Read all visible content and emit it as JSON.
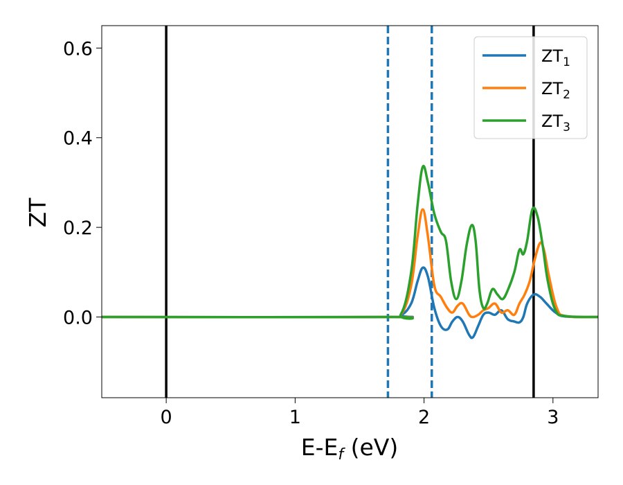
{
  "chart_data": {
    "type": "line",
    "xlabel": "E-E",
    "xlabel_sub": "f",
    "xlabel_unit": " (eV)",
    "ylabel": "ZT",
    "xlim": [
      -0.5,
      3.35
    ],
    "ylim": [
      -0.18,
      0.65
    ],
    "xticks": [
      0,
      1,
      2,
      3
    ],
    "yticks": [
      0.0,
      0.2,
      0.4,
      0.6
    ],
    "xtick_labels": [
      "0",
      "1",
      "2",
      "3"
    ],
    "ytick_labels": [
      "0.0",
      "0.2",
      "0.4",
      "0.6"
    ],
    "grid": false,
    "legend_position": "top-right",
    "vertical_lines": [
      {
        "x": 0.0,
        "style": "solid",
        "color": "#000000"
      },
      {
        "x": 2.85,
        "style": "solid",
        "color": "#000000"
      },
      {
        "x": 1.72,
        "style": "dashed",
        "color": "#1f77b4"
      },
      {
        "x": 2.06,
        "style": "dashed",
        "color": "#1f77b4"
      }
    ],
    "series": [
      {
        "name": "ZT",
        "sub": "1",
        "color": "#1f77b4",
        "x": [
          -0.5,
          1.7,
          1.82,
          1.9,
          1.95,
          1.99,
          2.03,
          2.08,
          2.13,
          2.18,
          2.22,
          2.26,
          2.3,
          2.35,
          2.38,
          2.42,
          2.46,
          2.5,
          2.55,
          2.6,
          2.65,
          2.7,
          2.74,
          2.77,
          2.8,
          2.85,
          2.9,
          2.95,
          3.02,
          3.1,
          3.35
        ],
        "y": [
          0.0,
          0.0,
          0.004,
          0.03,
          0.08,
          0.11,
          0.09,
          0.02,
          -0.02,
          -0.028,
          -0.01,
          0.0,
          -0.01,
          -0.04,
          -0.045,
          -0.02,
          0.005,
          0.01,
          0.005,
          0.015,
          -0.005,
          -0.01,
          -0.012,
          0.0,
          0.03,
          0.05,
          0.045,
          0.03,
          0.01,
          0.001,
          0.0
        ]
      },
      {
        "name": "ZT",
        "sub": "2",
        "color": "#ff7f0e",
        "x": [
          -0.5,
          1.7,
          1.82,
          1.9,
          1.95,
          1.99,
          2.03,
          2.08,
          2.13,
          2.18,
          2.22,
          2.26,
          2.3,
          2.35,
          2.38,
          2.42,
          2.46,
          2.5,
          2.55,
          2.6,
          2.65,
          2.7,
          2.74,
          2.78,
          2.82,
          2.86,
          2.9,
          2.93,
          2.97,
          3.03,
          3.1,
          3.35
        ],
        "y": [
          0.0,
          0.0,
          0.005,
          0.07,
          0.18,
          0.24,
          0.18,
          0.07,
          0.045,
          0.02,
          0.01,
          0.025,
          0.03,
          0.005,
          0.0,
          0.005,
          0.015,
          0.02,
          0.03,
          0.01,
          0.015,
          0.005,
          0.03,
          0.05,
          0.08,
          0.13,
          0.165,
          0.15,
          0.09,
          0.02,
          0.002,
          0.0
        ]
      },
      {
        "name": "ZT",
        "sub": "3",
        "color": "#2ca02c",
        "x": [
          -0.5,
          1.7,
          1.82,
          1.9,
          1.95,
          1.99,
          2.03,
          2.08,
          2.13,
          2.17,
          2.21,
          2.25,
          2.29,
          2.33,
          2.37,
          2.4,
          2.43,
          2.46,
          2.49,
          2.53,
          2.57,
          2.61,
          2.65,
          2.7,
          2.74,
          2.77,
          2.8,
          2.84,
          2.88,
          2.92,
          2.96,
          3.02,
          3.1,
          3.35
        ],
        "y": [
          0.0,
          0.0,
          0.006,
          0.1,
          0.25,
          0.335,
          0.3,
          0.23,
          0.19,
          0.17,
          0.08,
          0.04,
          0.08,
          0.16,
          0.205,
          0.17,
          0.06,
          0.02,
          0.03,
          0.062,
          0.05,
          0.04,
          0.06,
          0.1,
          0.15,
          0.14,
          0.17,
          0.24,
          0.225,
          0.16,
          0.08,
          0.015,
          0.002,
          0.0
        ]
      }
    ]
  }
}
